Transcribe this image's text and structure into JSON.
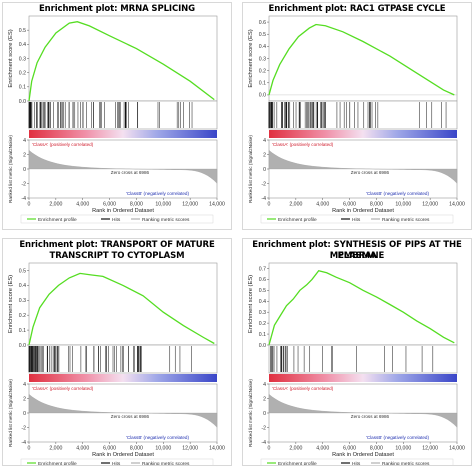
{
  "chart_data": [
    {
      "type": "line",
      "title": "Enrichment plot: MRNA SPLICING",
      "title_lines": [
        "Enrichment plot: MRNA SPLICING"
      ],
      "ylabel_es": "Enrichment score (ES)",
      "ylabel_metric": "Ranked list metric (Signal2Noise)",
      "xlabel": "Rank in Ordered Dataset",
      "es_yticks": [
        "0.5",
        "0.4",
        "0.3",
        "0.2",
        "0.1",
        "0.0"
      ],
      "es_ylim": [
        0.0,
        0.6
      ],
      "es_curve": {
        "x": [
          0,
          200,
          600,
          1200,
          2000,
          3000,
          3600,
          4500,
          6000,
          8000,
          10000,
          12000,
          13800
        ],
        "y": [
          0.0,
          0.14,
          0.27,
          0.38,
          0.48,
          0.55,
          0.56,
          0.53,
          0.46,
          0.37,
          0.26,
          0.14,
          0.01
        ]
      },
      "hit_density": "dense-left",
      "class_a": "'ClassA' (positively correlated)",
      "class_b": "'ClassB' (negatively correlated)",
      "zero_cross": "Zero cross at 6986",
      "zero_cross_pos": 6986,
      "metric_yticks": [
        "4",
        "2",
        "0",
        "-2",
        "-4"
      ],
      "metric_ylim": [
        -4,
        4
      ],
      "xticks": [
        "0",
        "2,000",
        "4,000",
        "6,000",
        "8,000",
        "10,000",
        "12,000",
        "14,000"
      ],
      "x_max": 14000,
      "legend": [
        "Enrichment profile",
        "Hits",
        "Ranking metric scores"
      ],
      "colors": {
        "curve": "#55dd22",
        "pos": "#e03040",
        "neg": "#3a46c8",
        "metric": "#b0b0b0"
      }
    },
    {
      "type": "line",
      "title": "Enrichment plot: RAC1 GTPASE CYCLE",
      "title_lines": [
        "Enrichment plot: RAC1 GTPASE CYCLE"
      ],
      "ylabel_es": "Enrichment score (ES)",
      "ylabel_metric": "Ranked list metric (Signal2Noise)",
      "xlabel": "Rank in Ordered Dataset",
      "es_yticks": [
        "0.6",
        "0.5",
        "0.4",
        "0.3",
        "0.2",
        "0.1",
        "0.0"
      ],
      "es_ylim": [
        -0.05,
        0.65
      ],
      "es_curve": {
        "x": [
          0,
          300,
          800,
          1500,
          2200,
          3000,
          3500,
          4200,
          5500,
          7000,
          9000,
          11000,
          13000,
          13800
        ],
        "y": [
          0.0,
          0.12,
          0.25,
          0.38,
          0.48,
          0.55,
          0.58,
          0.57,
          0.52,
          0.44,
          0.32,
          0.18,
          0.04,
          0.0
        ]
      },
      "hit_density": "dense-left",
      "class_a": "'ClassA' (positively correlated)",
      "class_b": "'ClassB' (negatively correlated)",
      "zero_cross": "Zero cross at 6986",
      "zero_cross_pos": 6986,
      "metric_yticks": [
        "4",
        "2",
        "0",
        "-2",
        "-4"
      ],
      "metric_ylim": [
        -4,
        4
      ],
      "xticks": [
        "0",
        "2,000",
        "4,000",
        "6,000",
        "8,000",
        "10,000",
        "12,000",
        "14,000"
      ],
      "x_max": 14000,
      "legend": [
        "Enrichment profile",
        "Hits",
        "Ranking metric scores"
      ],
      "colors": {
        "curve": "#55dd22",
        "pos": "#e03040",
        "neg": "#3a46c8",
        "metric": "#b0b0b0"
      }
    },
    {
      "type": "line",
      "title": "Enrichment plot: TRANSPORT OF MATURE TRANSCRIPT TO CYTOPLASM",
      "title_lines": [
        "Enrichment plot: TRANSPORT OF MATURE",
        "TRANSCRIPT TO CYTOPLASM"
      ],
      "ylabel_es": "Enrichment score (ES)",
      "ylabel_metric": "Ranked list metric (Signal2Noise)",
      "xlabel": "Rank in Ordered Dataset",
      "es_yticks": [
        "0.5",
        "0.4",
        "0.3",
        "0.2",
        "0.1",
        "0.0"
      ],
      "es_ylim": [
        0.0,
        0.55
      ],
      "es_curve": {
        "x": [
          0,
          300,
          800,
          1500,
          2200,
          3000,
          3800,
          4600,
          5500,
          7000,
          8500,
          10000,
          11500,
          13000,
          13800
        ],
        "y": [
          0.0,
          0.12,
          0.25,
          0.34,
          0.4,
          0.45,
          0.48,
          0.47,
          0.46,
          0.4,
          0.33,
          0.22,
          0.13,
          0.05,
          0.01
        ]
      },
      "hit_density": "dense-left",
      "class_a": "'ClassA' (positively correlated)",
      "class_b": "'ClassB' (negatively correlated)",
      "zero_cross": "Zero cross at 6986",
      "zero_cross_pos": 6986,
      "metric_yticks": [
        "4",
        "2",
        "0",
        "-2",
        "-4"
      ],
      "metric_ylim": [
        -4,
        4
      ],
      "xticks": [
        "0",
        "2,000",
        "4,000",
        "6,000",
        "8,000",
        "10,000",
        "12,000",
        "14,000"
      ],
      "x_max": 14000,
      "legend": [
        "Enrichment profile",
        "Hits",
        "Ranking metric scores"
      ],
      "colors": {
        "curve": "#55dd22",
        "pos": "#e03040",
        "neg": "#3a46c8",
        "metric": "#b0b0b0"
      }
    },
    {
      "type": "line",
      "title": "Enrichment plot: SYNTHESIS OF PIPS AT THE PLASMA MEMBRANE",
      "title_lines": [
        "Enrichment plot: SYNTHESIS OF PIPS AT THE PLASMA",
        "MEMBRANE"
      ],
      "ylabel_es": "Enrichment score (ES)",
      "ylabel_metric": "Ranked list metric (Signal2Noise)",
      "xlabel": "Rank in Ordered Dataset",
      "es_yticks": [
        "0.7",
        "0.6",
        "0.5",
        "0.4",
        "0.3",
        "0.2",
        "0.1",
        "0.0"
      ],
      "es_ylim": [
        0.0,
        0.75
      ],
      "es_curve": {
        "x": [
          0,
          400,
          800,
          1300,
          1800,
          2300,
          2800,
          3200,
          3700,
          4300,
          5000,
          6000,
          7000,
          8000,
          9000,
          10000,
          11000,
          12000,
          13000,
          13800
        ],
        "y": [
          0.0,
          0.18,
          0.26,
          0.36,
          0.42,
          0.5,
          0.55,
          0.6,
          0.68,
          0.66,
          0.62,
          0.57,
          0.5,
          0.44,
          0.37,
          0.3,
          0.22,
          0.15,
          0.07,
          0.02
        ]
      },
      "hit_density": "sparse",
      "class_a": "'ClassA' (positively correlated)",
      "class_b": "'ClassB' (negatively correlated)",
      "zero_cross": "Zero cross at 6986",
      "zero_cross_pos": 6986,
      "metric_yticks": [
        "4",
        "2",
        "0",
        "-2",
        "-4"
      ],
      "metric_ylim": [
        -4,
        4
      ],
      "xticks": [
        "0",
        "2,000",
        "4,000",
        "6,000",
        "8,000",
        "10,000",
        "12,000",
        "14,000"
      ],
      "x_max": 14000,
      "legend": [
        "Enrichment profile",
        "Hits",
        "Ranking metric scores"
      ],
      "colors": {
        "curve": "#55dd22",
        "pos": "#e03040",
        "neg": "#3a46c8",
        "metric": "#b0b0b0"
      }
    }
  ]
}
